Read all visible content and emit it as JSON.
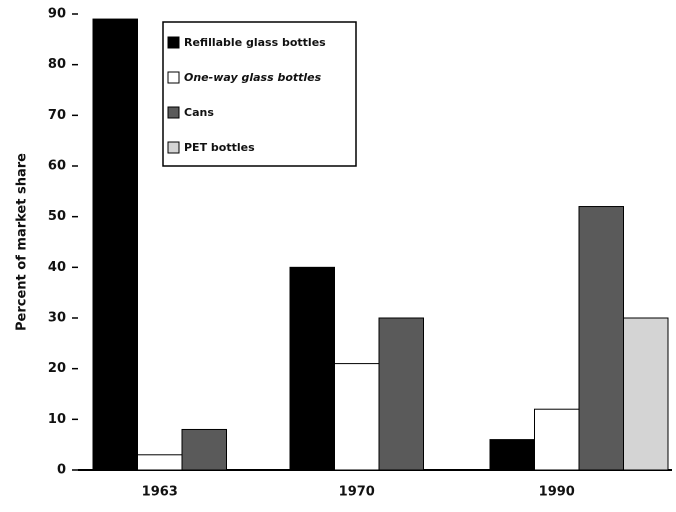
{
  "chart_data": {
    "type": "bar",
    "ylabel": "Percent of market share",
    "categories": [
      "1963",
      "1970",
      "1990"
    ],
    "series": [
      {
        "name": "Refillable glass bottles",
        "color": "#000000",
        "values": [
          89,
          40,
          6
        ]
      },
      {
        "name": "One-way glass bottles",
        "color": "#ffffff",
        "values": [
          3,
          21,
          12
        ]
      },
      {
        "name": "Cans",
        "color": "#5a5a5a",
        "values": [
          8,
          30,
          52
        ]
      },
      {
        "name": "PET bottles",
        "color": "#d4d4d4",
        "values": [
          0,
          0,
          30
        ]
      }
    ],
    "ylim": [
      0,
      90
    ],
    "yticks": [
      0,
      10,
      20,
      30,
      40,
      50,
      60,
      70,
      80,
      90
    ],
    "legend": "upper left"
  }
}
